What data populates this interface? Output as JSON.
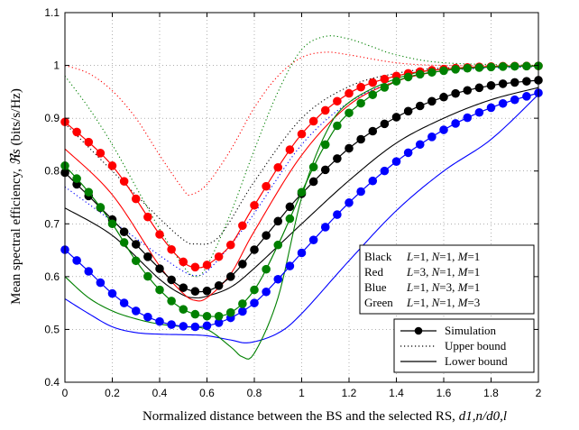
{
  "chart_data": {
    "type": "line",
    "xlabel": "Normalized distance between the BS and the selected RS, ",
    "xlabel_math": "d1,n/d0,l",
    "ylabel": "Mean spectral efficiency, ",
    "ylabel_math": "ℜs",
    "ylabel_unit": " (bits/s/Hz)",
    "xlim": [
      0,
      2
    ],
    "ylim": [
      0.4,
      1.1
    ],
    "xticks": [
      "0",
      "0.2",
      "0.4",
      "0.6",
      "0.8",
      "1",
      "1.2",
      "1.4",
      "1.6",
      "1.8",
      "2"
    ],
    "yticks": [
      "0.4",
      "0.5",
      "0.6",
      "0.7",
      "0.8",
      "0.9",
      "1",
      "1.1"
    ],
    "grid": "dotted",
    "colors": {
      "Black": "#000000",
      "Red": "#ff0000",
      "Blue": "#0000ff",
      "Green": "#008000"
    },
    "config_legend": [
      {
        "color": "Black",
        "L": "1",
        "N": "1",
        "M": "1"
      },
      {
        "color": "Red",
        "L": "3",
        "N": "1",
        "M": "1"
      },
      {
        "color": "Blue",
        "L": "1",
        "N": "3",
        "M": "1"
      },
      {
        "color": "Green",
        "L": "1",
        "N": "1",
        "M": "3"
      }
    ],
    "style_legend": [
      "Simulation",
      "Upper bound",
      "Lower bound"
    ],
    "series": [
      {
        "color": "Black",
        "style": "Simulation",
        "points": [
          [
            0,
            0.797
          ],
          [
            0.2,
            0.708
          ],
          [
            0.4,
            0.615
          ],
          [
            0.5,
            0.579
          ],
          [
            0.6,
            0.573
          ],
          [
            0.7,
            0.6
          ],
          [
            0.8,
            0.651
          ],
          [
            0.9,
            0.705
          ],
          [
            1.0,
            0.757
          ],
          [
            1.2,
            0.843
          ],
          [
            1.4,
            0.902
          ],
          [
            1.6,
            0.94
          ],
          [
            1.8,
            0.962
          ],
          [
            2.0,
            0.972
          ]
        ]
      },
      {
        "color": "Black",
        "style": "Upper bound",
        "points": [
          [
            0,
            0.89
          ],
          [
            0.2,
            0.8
          ],
          [
            0.4,
            0.71
          ],
          [
            0.5,
            0.67
          ],
          [
            0.55,
            0.662
          ],
          [
            0.65,
            0.675
          ],
          [
            0.8,
            0.78
          ],
          [
            1.0,
            0.9
          ],
          [
            1.2,
            0.96
          ],
          [
            1.4,
            0.985
          ],
          [
            1.6,
            0.995
          ],
          [
            2.0,
            0.998
          ]
        ]
      },
      {
        "color": "Black",
        "style": "Lower bound",
        "points": [
          [
            0,
            0.73
          ],
          [
            0.2,
            0.678
          ],
          [
            0.4,
            0.595
          ],
          [
            0.5,
            0.565
          ],
          [
            0.55,
            0.56
          ],
          [
            0.6,
            0.563
          ],
          [
            0.7,
            0.58
          ],
          [
            0.8,
            0.616
          ],
          [
            1.0,
            0.7
          ],
          [
            1.2,
            0.782
          ],
          [
            1.4,
            0.853
          ],
          [
            1.6,
            0.9
          ],
          [
            1.8,
            0.935
          ],
          [
            2.0,
            0.958
          ]
        ]
      },
      {
        "color": "Red",
        "style": "Simulation",
        "points": [
          [
            0,
            0.893
          ],
          [
            0.2,
            0.81
          ],
          [
            0.4,
            0.68
          ],
          [
            0.5,
            0.628
          ],
          [
            0.55,
            0.618
          ],
          [
            0.6,
            0.622
          ],
          [
            0.7,
            0.66
          ],
          [
            0.8,
            0.735
          ],
          [
            1.0,
            0.87
          ],
          [
            1.2,
            0.947
          ],
          [
            1.4,
            0.98
          ],
          [
            1.6,
            0.993
          ],
          [
            1.8,
            0.998
          ],
          [
            2.0,
            0.999
          ]
        ]
      },
      {
        "color": "Red",
        "style": "Upper bound",
        "points": [
          [
            0,
            1.0
          ],
          [
            0.1,
            0.985
          ],
          [
            0.2,
            0.952
          ],
          [
            0.3,
            0.9
          ],
          [
            0.4,
            0.83
          ],
          [
            0.5,
            0.765
          ],
          [
            0.53,
            0.755
          ],
          [
            0.6,
            0.775
          ],
          [
            0.7,
            0.84
          ],
          [
            0.8,
            0.92
          ],
          [
            0.9,
            0.98
          ],
          [
            1.0,
            1.015
          ],
          [
            1.1,
            1.025
          ],
          [
            1.2,
            1.02
          ],
          [
            1.4,
            1.005
          ],
          [
            1.6,
            1.0
          ],
          [
            2.0,
            1.0
          ]
        ]
      },
      {
        "color": "Red",
        "style": "Lower bound",
        "points": [
          [
            0,
            0.842
          ],
          [
            0.2,
            0.755
          ],
          [
            0.4,
            0.62
          ],
          [
            0.5,
            0.568
          ],
          [
            0.55,
            0.555
          ],
          [
            0.6,
            0.56
          ],
          [
            0.7,
            0.605
          ],
          [
            0.8,
            0.686
          ],
          [
            1.0,
            0.83
          ],
          [
            1.2,
            0.925
          ],
          [
            1.4,
            0.97
          ],
          [
            1.6,
            0.99
          ],
          [
            1.8,
            0.997
          ],
          [
            2.0,
            0.999
          ]
        ]
      },
      {
        "color": "Blue",
        "style": "Simulation",
        "points": [
          [
            0,
            0.651
          ],
          [
            0.1,
            0.61
          ],
          [
            0.2,
            0.568
          ],
          [
            0.3,
            0.535
          ],
          [
            0.4,
            0.515
          ],
          [
            0.5,
            0.506
          ],
          [
            0.6,
            0.507
          ],
          [
            0.7,
            0.522
          ],
          [
            0.8,
            0.55
          ],
          [
            0.9,
            0.595
          ],
          [
            1.0,
            0.645
          ],
          [
            1.2,
            0.74
          ],
          [
            1.4,
            0.818
          ],
          [
            1.6,
            0.878
          ],
          [
            1.8,
            0.92
          ],
          [
            2.0,
            0.948
          ]
        ]
      },
      {
        "color": "Blue",
        "style": "Upper bound",
        "points": [
          [
            0,
            0.77
          ],
          [
            0.2,
            0.705
          ],
          [
            0.4,
            0.64
          ],
          [
            0.5,
            0.61
          ],
          [
            0.55,
            0.602
          ],
          [
            0.6,
            0.61
          ],
          [
            0.7,
            0.66
          ],
          [
            0.8,
            0.72
          ],
          [
            1.0,
            0.85
          ],
          [
            1.2,
            0.93
          ],
          [
            1.4,
            0.97
          ],
          [
            1.6,
            0.99
          ],
          [
            2.0,
            0.998
          ]
        ]
      },
      {
        "color": "Blue",
        "style": "Lower bound",
        "points": [
          [
            0,
            0.558
          ],
          [
            0.1,
            0.53
          ],
          [
            0.2,
            0.505
          ],
          [
            0.3,
            0.494
          ],
          [
            0.4,
            0.491
          ],
          [
            0.5,
            0.49
          ],
          [
            0.6,
            0.488
          ],
          [
            0.7,
            0.48
          ],
          [
            0.78,
            0.475
          ],
          [
            0.9,
            0.493
          ],
          [
            1.0,
            0.53
          ],
          [
            1.2,
            0.63
          ],
          [
            1.4,
            0.725
          ],
          [
            1.6,
            0.8
          ],
          [
            1.8,
            0.86
          ],
          [
            2.0,
            0.945
          ]
        ]
      },
      {
        "color": "Green",
        "style": "Simulation",
        "points": [
          [
            0,
            0.81
          ],
          [
            0.1,
            0.76
          ],
          [
            0.2,
            0.7
          ],
          [
            0.3,
            0.63
          ],
          [
            0.4,
            0.575
          ],
          [
            0.5,
            0.538
          ],
          [
            0.6,
            0.525
          ],
          [
            0.7,
            0.532
          ],
          [
            0.8,
            0.575
          ],
          [
            0.9,
            0.66
          ],
          [
            1.0,
            0.76
          ],
          [
            1.1,
            0.85
          ],
          [
            1.2,
            0.91
          ],
          [
            1.4,
            0.97
          ],
          [
            1.6,
            0.99
          ],
          [
            1.8,
            0.997
          ],
          [
            2.0,
            0.999
          ]
        ]
      },
      {
        "color": "Green",
        "style": "Upper bound",
        "points": [
          [
            0,
            0.98
          ],
          [
            0.1,
            0.92
          ],
          [
            0.2,
            0.85
          ],
          [
            0.3,
            0.77
          ],
          [
            0.4,
            0.69
          ],
          [
            0.5,
            0.62
          ],
          [
            0.55,
            0.6
          ],
          [
            0.6,
            0.62
          ],
          [
            0.7,
            0.72
          ],
          [
            0.8,
            0.84
          ],
          [
            0.9,
            0.95
          ],
          [
            1.0,
            1.03
          ],
          [
            1.1,
            1.055
          ],
          [
            1.2,
            1.05
          ],
          [
            1.3,
            1.035
          ],
          [
            1.4,
            1.02
          ],
          [
            1.6,
            1.005
          ],
          [
            2.0,
            1.0
          ]
        ]
      },
      {
        "color": "Green",
        "style": "Lower bound",
        "points": [
          [
            0,
            0.6
          ],
          [
            0.1,
            0.56
          ],
          [
            0.2,
            0.535
          ],
          [
            0.3,
            0.52
          ],
          [
            0.4,
            0.51
          ],
          [
            0.5,
            0.505
          ],
          [
            0.6,
            0.5
          ],
          [
            0.7,
            0.467
          ],
          [
            0.75,
            0.448
          ],
          [
            0.8,
            0.455
          ],
          [
            0.9,
            0.56
          ],
          [
            1.0,
            0.75
          ],
          [
            1.1,
            0.87
          ],
          [
            1.2,
            0.93
          ],
          [
            1.4,
            0.975
          ],
          [
            1.6,
            0.993
          ],
          [
            2.0,
            0.999
          ]
        ]
      }
    ]
  }
}
